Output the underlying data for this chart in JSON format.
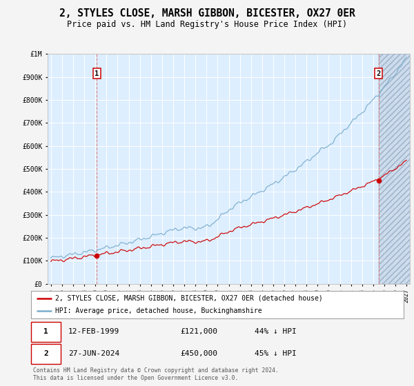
{
  "title": "2, STYLES CLOSE, MARSH GIBBON, BICESTER, OX27 0ER",
  "subtitle": "Price paid vs. HM Land Registry's House Price Index (HPI)",
  "title_fontsize": 10.5,
  "subtitle_fontsize": 8.5,
  "x_start_year": 1995,
  "x_end_year": 2027,
  "y_min": 0,
  "y_max": 1000000,
  "y_ticks": [
    0,
    100000,
    200000,
    300000,
    400000,
    500000,
    600000,
    700000,
    800000,
    900000,
    1000000
  ],
  "sale1_year": 1999.12,
  "sale1_price": 121000,
  "sale2_year": 2024.49,
  "sale2_price": 450000,
  "red_line_color": "#cc0000",
  "blue_line_color": "#7aadcc",
  "plot_bg_color": "#ddeeff",
  "fig_bg_color": "#f4f4f4",
  "legend1_text": "2, STYLES CLOSE, MARSH GIBBON, BICESTER, OX27 0ER (detached house)",
  "legend2_text": "HPI: Average price, detached house, Buckinghamshire",
  "table_row1": [
    "1",
    "12-FEB-1999",
    "£121,000",
    "44% ↓ HPI"
  ],
  "table_row2": [
    "2",
    "27-JUN-2024",
    "£450,000",
    "45% ↓ HPI"
  ],
  "footnote": "Contains HM Land Registry data © Crown copyright and database right 2024.\nThis data is licensed under the Open Government Licence v3.0."
}
